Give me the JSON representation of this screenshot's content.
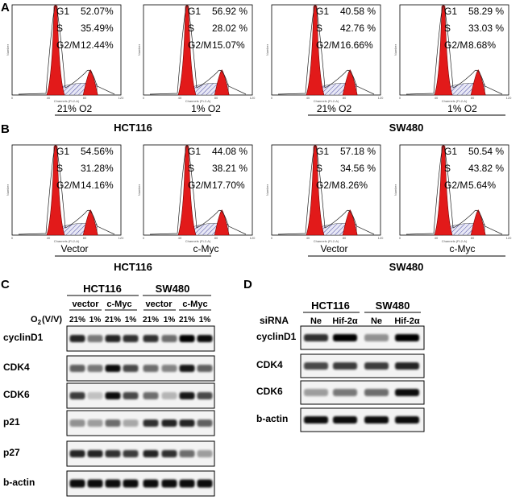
{
  "figure": {
    "panel_labels": {
      "a": "A",
      "b": "B",
      "c": "C",
      "d": "D"
    },
    "histogram_axis": {
      "y_label": "Number",
      "x_label": "Channels (FL2-A)",
      "ticks": [
        "0",
        "40",
        "80",
        "120"
      ]
    },
    "row_a": [
      {
        "g1": "52.07%",
        "s": "35.49%",
        "g2m": "12.44%"
      },
      {
        "g1": "56.92 %",
        "s": "28.02 %",
        "g2m": "15.07%"
      },
      {
        "g1": "40.58 %",
        "s": "42.76 %",
        "g2m": "16.66%"
      },
      {
        "g1": "58.29 %",
        "s": "33.03 %",
        "g2m": "8.68%"
      }
    ],
    "row_b": [
      {
        "g1": "54.56%",
        "s": "31.28%",
        "g2m": "14.16%"
      },
      {
        "g1": "44.08 %",
        "s": "38.21 %",
        "g2m": "17.70%"
      },
      {
        "g1": "57.18 %",
        "s": "34.56 %",
        "g2m": "8.26%"
      },
      {
        "g1": "50.54 %",
        "s": "43.82 %",
        "g2m": "5.64%"
      }
    ],
    "phase_labels": {
      "g1": "G1",
      "s": "S",
      "g2m": "G2/M"
    },
    "a_conditions": [
      "21% O2",
      "1% O2",
      "21% O2",
      "1% O2"
    ],
    "b_conditions": [
      "Vector",
      "c-Myc",
      "Vector",
      "c-Myc"
    ],
    "cell_lines": [
      "HCT116",
      "SW480"
    ],
    "blot_c": {
      "cell_lines": [
        "HCT116",
        "SW480"
      ],
      "groups": [
        "vector",
        "c-Myc",
        "vector",
        "c-Myc"
      ],
      "o2_label_main": "O",
      "o2_label_sub": "2",
      "o2_label_tail": "(V/V)",
      "o2_lanes": [
        "21%",
        "1%",
        "21%",
        "1%",
        "21%",
        "1%",
        "21%",
        "1%"
      ],
      "proteins": [
        "cyclinD1",
        "CDK4",
        "CDK6",
        "p21",
        "p27",
        "b-actin"
      ]
    },
    "blot_d": {
      "cell_lines": [
        "HCT116",
        "SW480"
      ],
      "sirna_label": "siRNA",
      "lanes": [
        "Ne",
        "Hif-2α",
        "Ne",
        "Hif-2α"
      ],
      "proteins": [
        "cyclinD1",
        "CDK4",
        "CDK6",
        "b-actin"
      ]
    }
  }
}
